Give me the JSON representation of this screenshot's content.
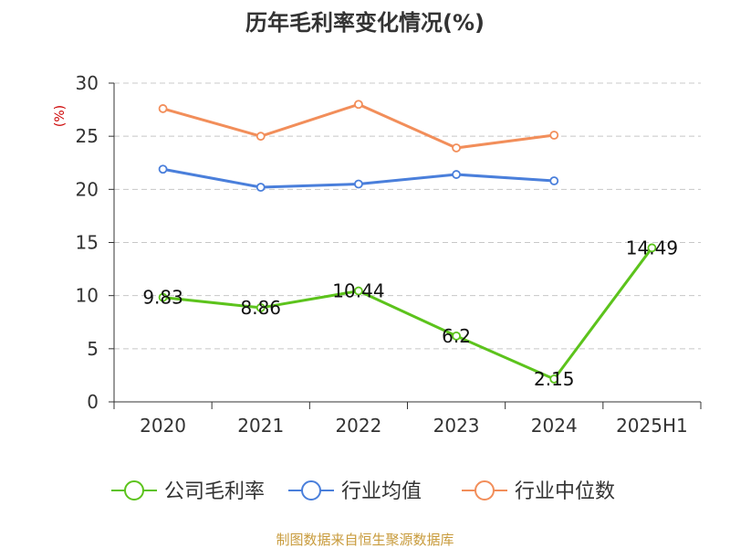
{
  "chart_data": {
    "type": "line",
    "title": "历年毛利率变化情况(%)",
    "ylabel": "(%)",
    "xlabel": "",
    "categories": [
      "2020",
      "2021",
      "2022",
      "2023",
      "2024",
      "2025H1"
    ],
    "ylim": [
      0,
      30
    ],
    "yticks": [
      0,
      5,
      10,
      15,
      20,
      25,
      30
    ],
    "grid": true,
    "legend_position": "bottom",
    "series": [
      {
        "name": "公司毛利率",
        "color": "#5cc31c",
        "values": [
          9.83,
          8.86,
          10.44,
          6.2,
          2.15,
          14.49
        ],
        "labels": [
          "9.83",
          "8.86",
          "10.44",
          "6.2",
          "2.15",
          "14.49"
        ]
      },
      {
        "name": "行业均值",
        "color": "#4a7fdb",
        "values": [
          21.9,
          20.2,
          20.5,
          21.4,
          20.8,
          null
        ]
      },
      {
        "name": "行业中位数",
        "color": "#f28e5a",
        "values": [
          27.6,
          25.0,
          28.0,
          23.9,
          25.1,
          null
        ]
      }
    ],
    "source": "制图数据来自恒生聚源数据库"
  }
}
